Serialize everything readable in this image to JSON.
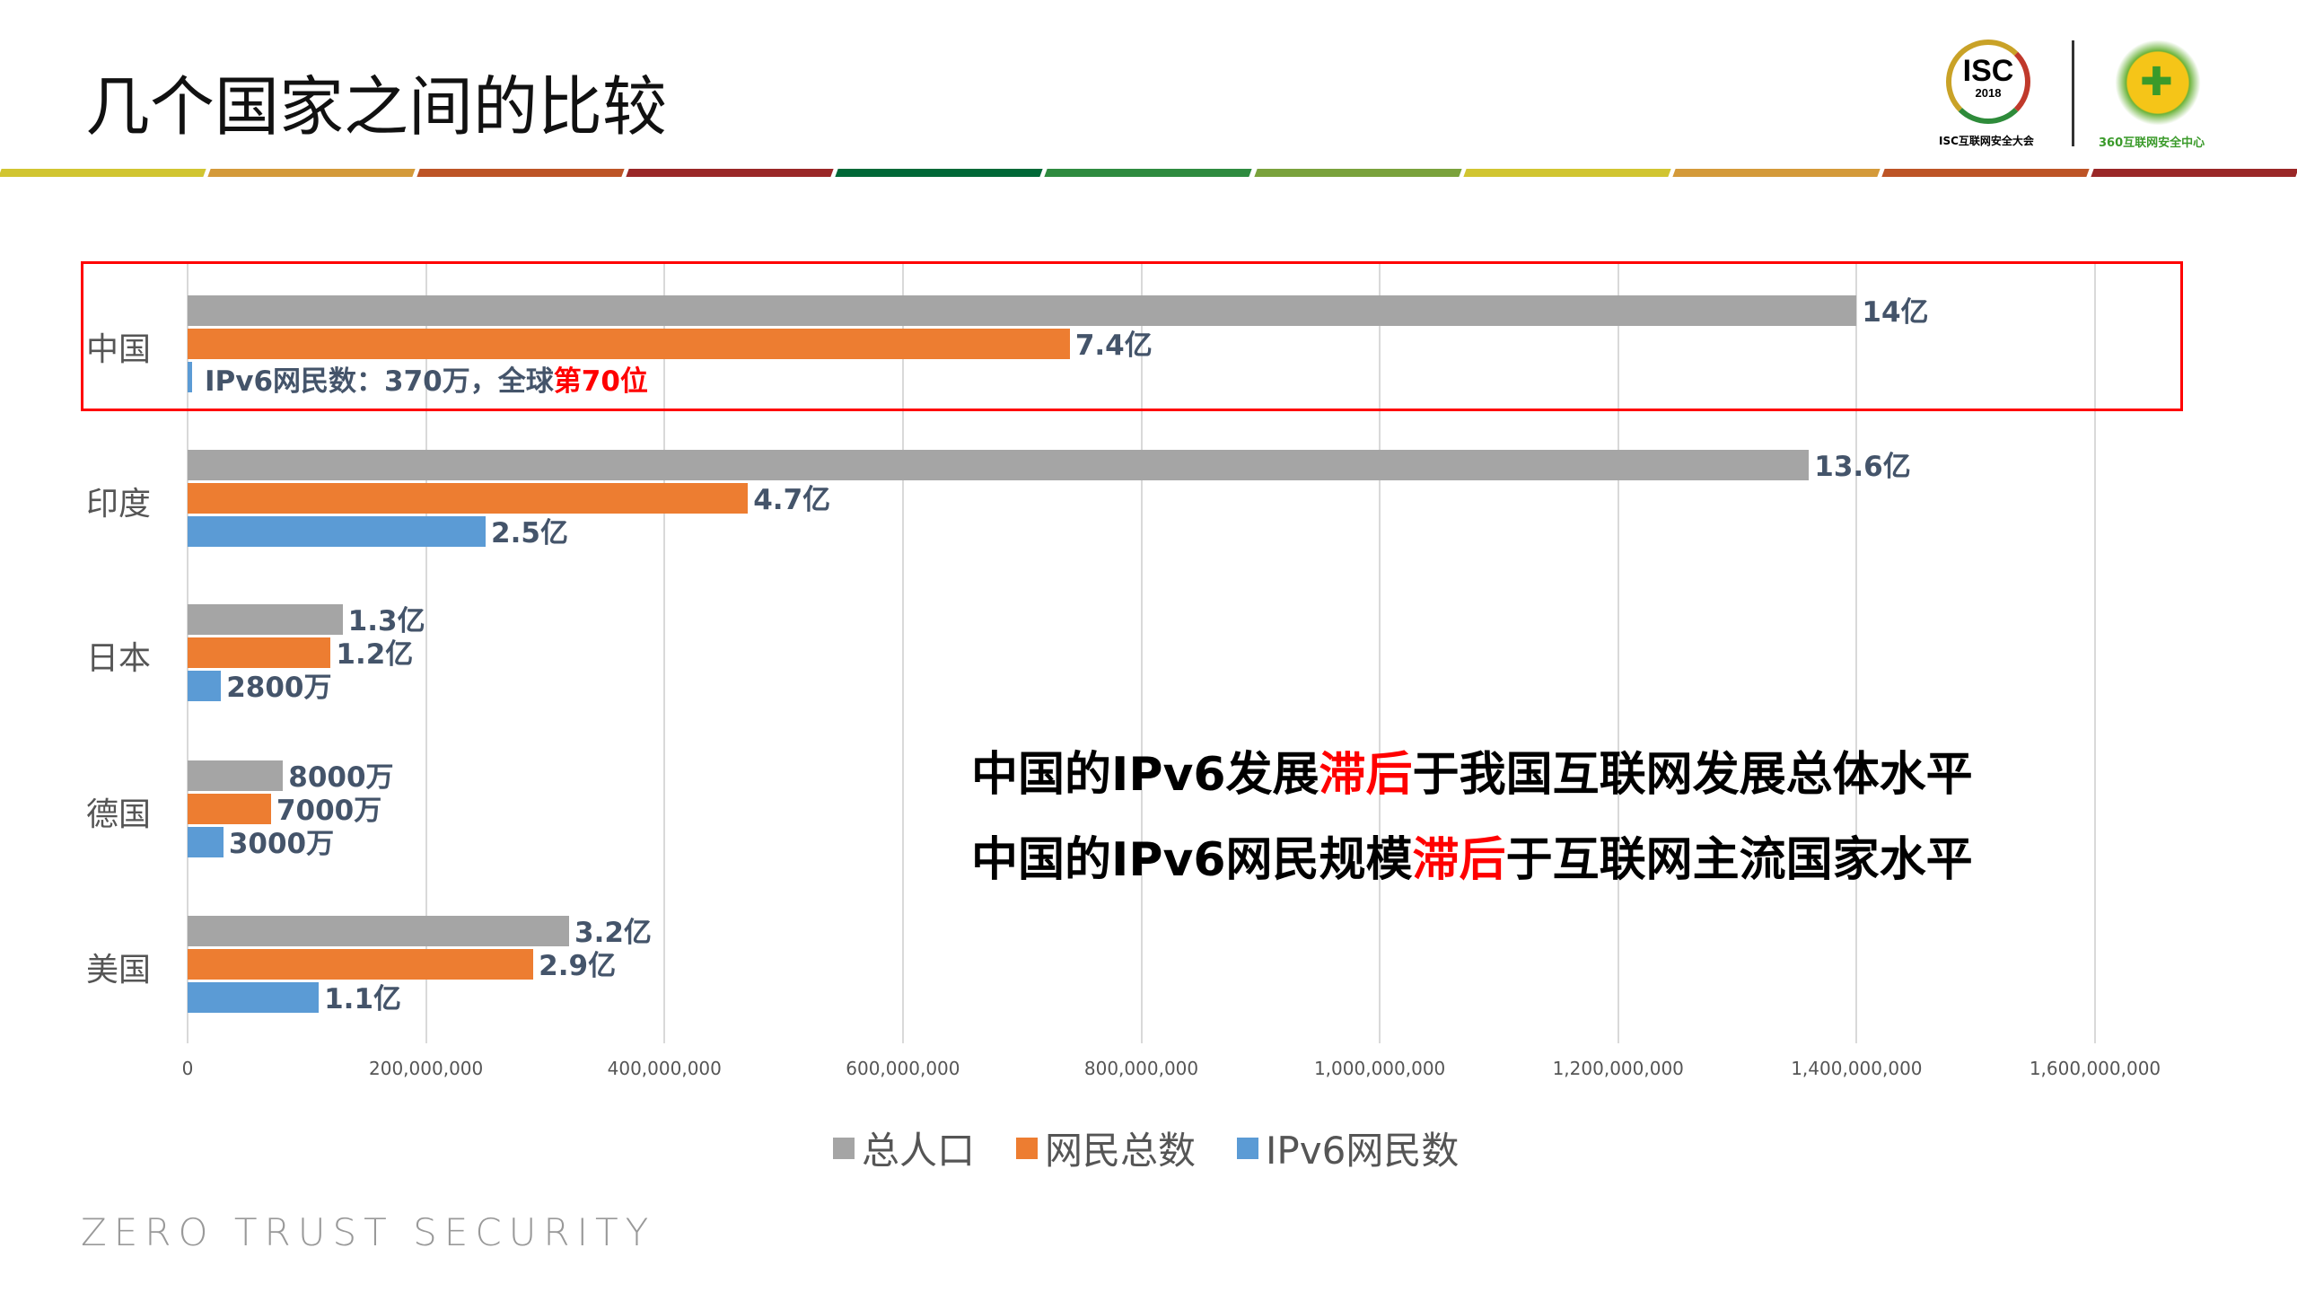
{
  "title": "几个国家之间的比较",
  "logos": {
    "isc_text": "ISC",
    "isc_year": "2018",
    "isc_caption": "ISC互联网安全大会",
    "center_caption": "360互联网安全中心"
  },
  "stripe_colors": [
    "#d1c531",
    "#d49a3a",
    "#bd5426",
    "#9a2727",
    "#006837",
    "#2e8b3f",
    "#7aa23c",
    "#d1c531",
    "#d49a3a",
    "#bd5426",
    "#9a2727"
  ],
  "chart_data": {
    "type": "bar",
    "orientation": "horizontal",
    "categories": [
      "中国",
      "印度",
      "日本",
      "德国",
      "美国"
    ],
    "series": [
      {
        "name": "总人口",
        "color": "#a5a5a5",
        "values": [
          1400000000,
          1360000000,
          130000000,
          80000000,
          320000000
        ],
        "labels": [
          "14亿",
          "13.6亿",
          "1.3亿",
          "8000万",
          "3.2亿"
        ]
      },
      {
        "name": "网民总数",
        "color": "#ed7d31",
        "values": [
          740000000,
          470000000,
          120000000,
          70000000,
          290000000
        ],
        "labels": [
          "7.4亿",
          "4.7亿",
          "1.2亿",
          "7000万",
          "2.9亿"
        ]
      },
      {
        "name": "IPv6网民数",
        "color": "#5b9bd5",
        "values": [
          3700000,
          250000000,
          28000000,
          30000000,
          110000000
        ],
        "labels": [
          "",
          "2.5亿",
          "2800万",
          "3000万",
          "1.1亿"
        ]
      }
    ],
    "xlim": [
      0,
      1600000000
    ],
    "xticks": [
      "0",
      "200,000,000",
      "400,000,000",
      "600,000,000",
      "800,000,000",
      "1,000,000,000",
      "1,200,000,000",
      "1,400,000,000",
      "1,600,000,000"
    ],
    "grid": true,
    "legend": "bottom",
    "highlight": {
      "category": "中国",
      "text_prefix": "IPv6网民数：370万，全球",
      "text_red": "第70位",
      "box_color": "#ff0000"
    }
  },
  "notes": [
    {
      "a": "中国的IPv6发展",
      "red": "滞后",
      "b": "于我国互联网发展总体水平"
    },
    {
      "a": "中国的IPv6网民规模",
      "red": "滞后",
      "b": "于互联网主流国家水平"
    }
  ],
  "footer": "ZERO TRUST SECURITY"
}
